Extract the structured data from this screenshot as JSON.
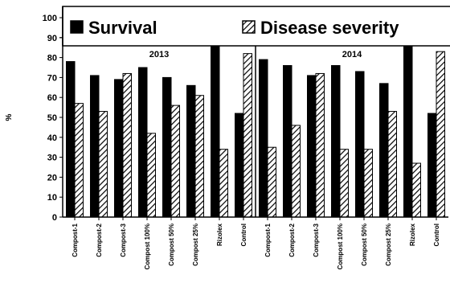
{
  "chart_data": {
    "type": "bar",
    "ylabel": "%",
    "ylim": [
      0,
      100
    ],
    "yticks": [
      0,
      10,
      20,
      30,
      40,
      50,
      60,
      70,
      80,
      90,
      100
    ],
    "legend_position": "top",
    "series_styles": [
      {
        "color": "#000000",
        "pattern": "solid"
      },
      {
        "color": "#000000",
        "pattern": "diagonal-hatch"
      }
    ],
    "legend": [
      "Survival",
      "Disease severity"
    ],
    "panels": [
      {
        "label": "2013",
        "categories": [
          "Compost-1",
          "Compost-2",
          "Compost-3",
          "Compost 100%",
          "Compost 50%",
          "Compost 25%",
          "Rizolex",
          "Control"
        ],
        "series": [
          {
            "name": "Survival",
            "values": [
              78,
              71,
              69,
              75,
              70,
              66,
              86,
              52
            ]
          },
          {
            "name": "Disease severity",
            "values": [
              57,
              53,
              72,
              42,
              56,
              61,
              34,
              82
            ]
          }
        ]
      },
      {
        "label": "2014",
        "categories": [
          "Compost-1",
          "Compost-2",
          "Compost-3",
          "Compost 100%",
          "Compost 50%",
          "Compost 25%",
          "Rizolex",
          "Control"
        ],
        "series": [
          {
            "name": "Survival",
            "values": [
              79,
              76,
              71,
              76,
              73,
              67,
              88,
              52
            ]
          },
          {
            "name": "Disease severity",
            "values": [
              35,
              46,
              72,
              34,
              34,
              53,
              27,
              83
            ]
          }
        ]
      }
    ]
  }
}
